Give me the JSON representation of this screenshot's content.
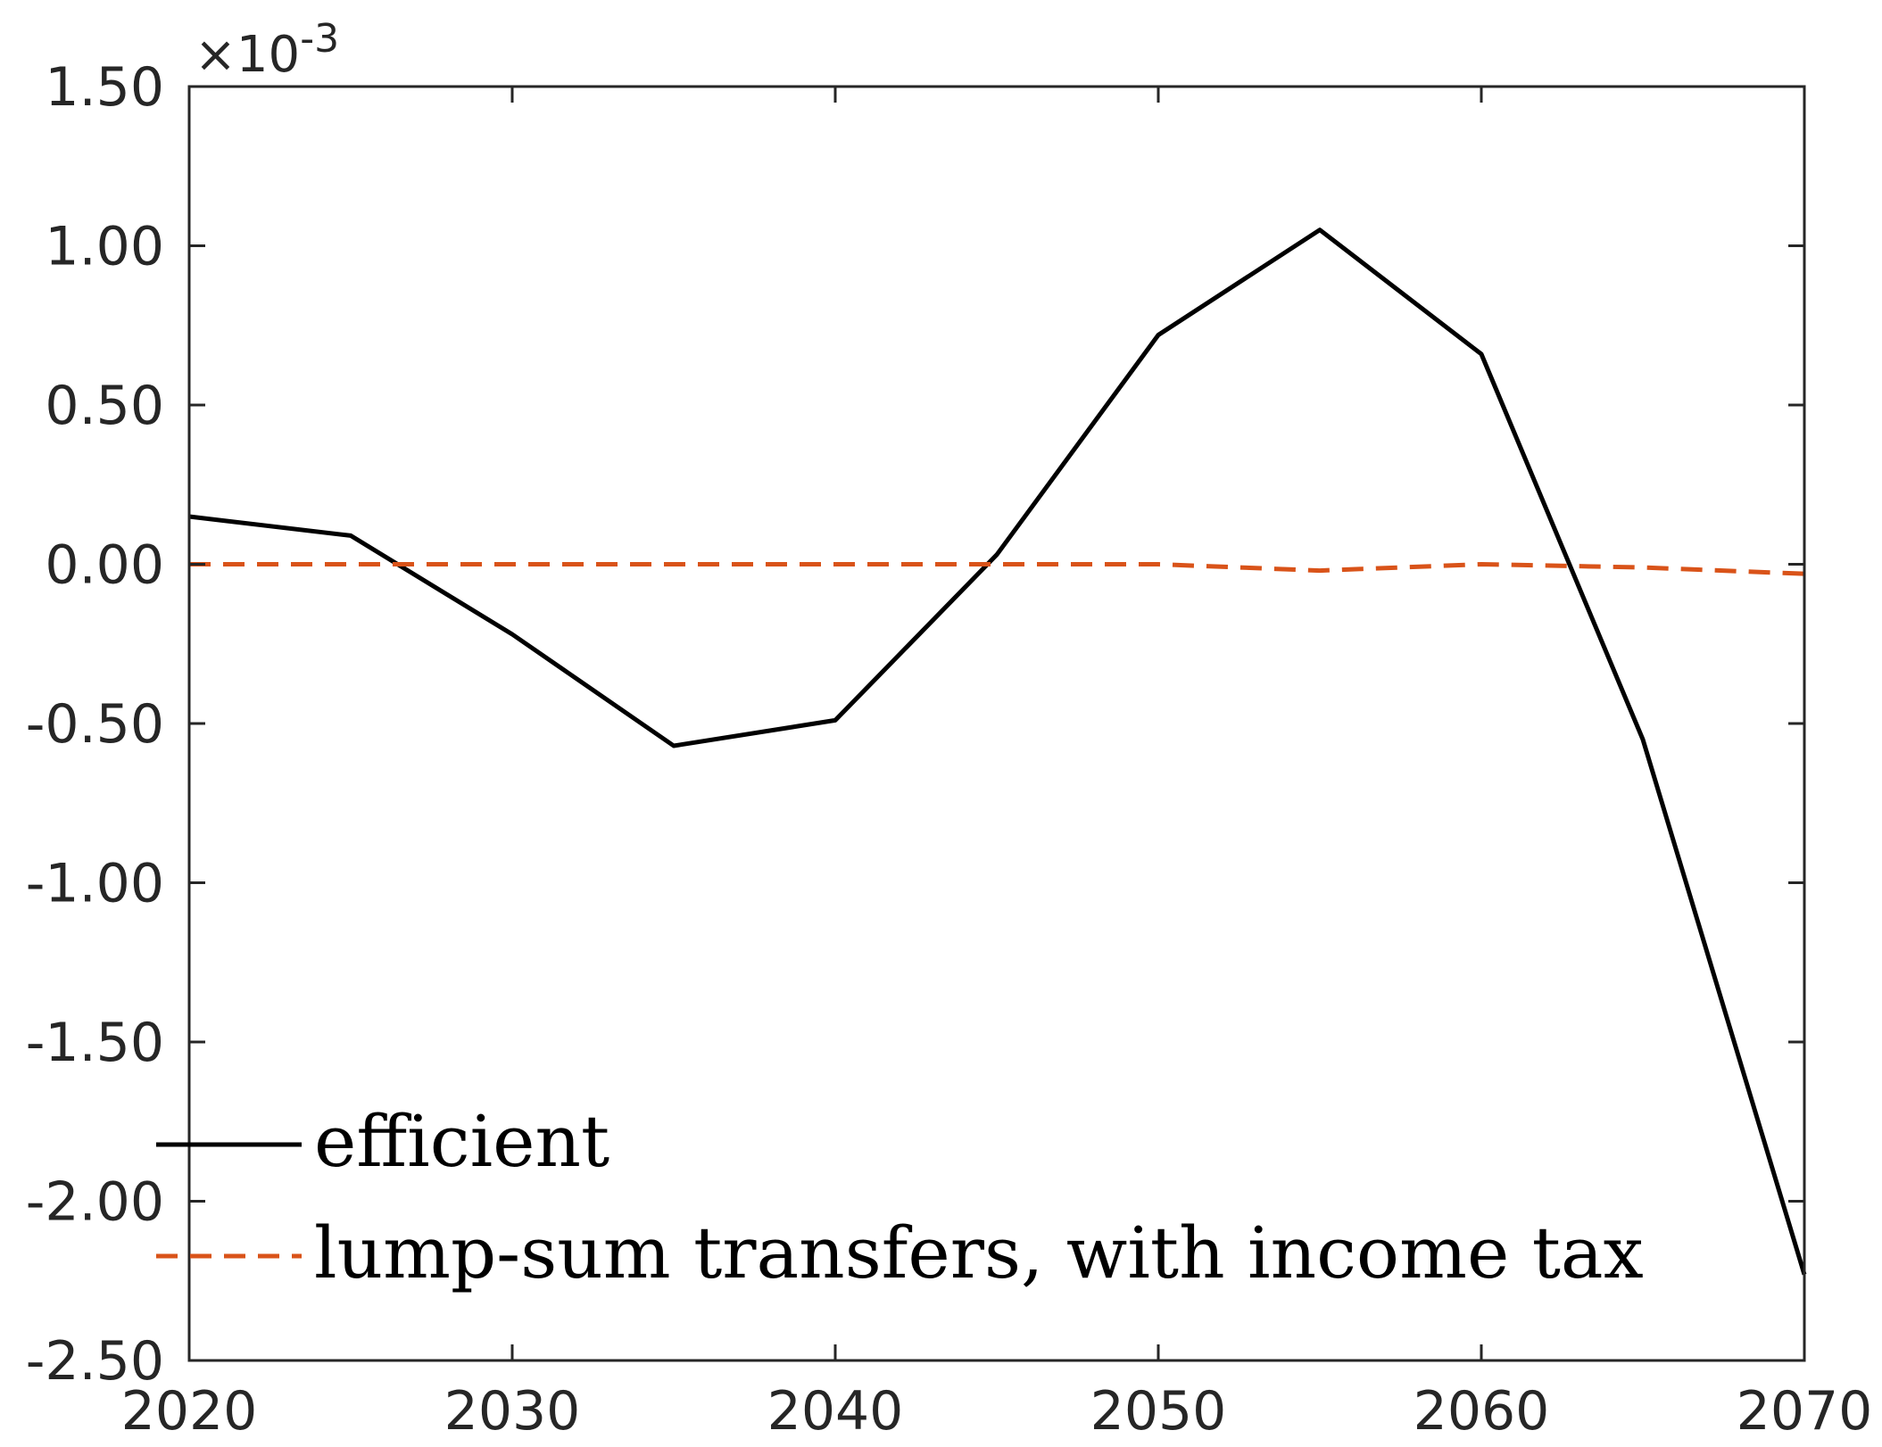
{
  "chart_data": {
    "type": "line",
    "title": "",
    "xlabel": "",
    "ylabel": "",
    "y_scale_label": "×10-3",
    "y_scale_factor": 0.001,
    "xlim": [
      2020,
      2070
    ],
    "ylim": [
      -2.5,
      1.5
    ],
    "xticks": [
      2020,
      2030,
      2040,
      2050,
      2060,
      2070
    ],
    "xtick_labels": [
      "2020",
      "2030",
      "2040",
      "2050",
      "2060",
      "2070"
    ],
    "yticks": [
      1.5,
      1.0,
      0.5,
      0.0,
      -0.5,
      -1.0,
      -1.5,
      -2.0,
      -2.5
    ],
    "ytick_labels": [
      "1.50",
      "1.00",
      "0.50",
      "0.00",
      "-0.50",
      "-1.00",
      "-1.50",
      "-2.00",
      "-2.50"
    ],
    "grid": false,
    "legend_position": "bottom-left",
    "series": [
      {
        "name": "efficient",
        "color": "#000000",
        "style": "solid",
        "x": [
          2020,
          2025,
          2030,
          2035,
          2040,
          2045,
          2050,
          2055,
          2060,
          2065,
          2070
        ],
        "y": [
          0.15,
          0.09,
          -0.22,
          -0.57,
          -0.49,
          0.03,
          0.72,
          1.05,
          0.66,
          -0.55,
          -2.23
        ]
      },
      {
        "name": "lump-sum transfers, with income tax",
        "color": "#D95319",
        "style": "dashed",
        "x": [
          2020,
          2025,
          2030,
          2035,
          2040,
          2045,
          2050,
          2055,
          2060,
          2065,
          2070
        ],
        "y": [
          0.0,
          0.0,
          0.0,
          0.0,
          0.0,
          0.0,
          0.0,
          -0.02,
          0.0,
          -0.01,
          -0.03
        ]
      }
    ]
  }
}
